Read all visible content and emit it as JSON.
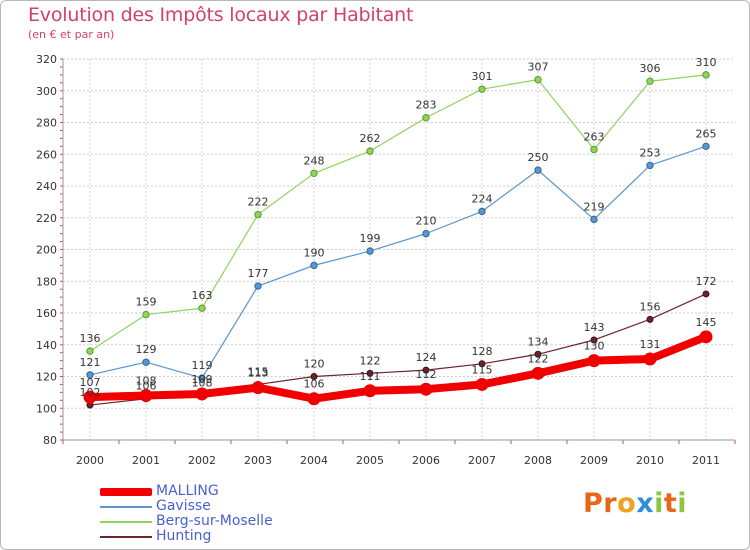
{
  "header": {
    "title": "Evolution des Impôts locaux par Habitant",
    "subtitle": "(en € et par an)"
  },
  "logo": {
    "text": "Proxiti",
    "letters": [
      {
        "char": "P",
        "color": "#e8651a"
      },
      {
        "char": "r",
        "color": "#e8651a"
      },
      {
        "char": "o",
        "color": "#f0a21c"
      },
      {
        "char": "x",
        "color": "#2d8fd8"
      },
      {
        "char": "i",
        "color": "#8cc63f"
      },
      {
        "char": "t",
        "color": "#e8651a"
      },
      {
        "char": "i",
        "color": "#8cc63f"
      }
    ]
  },
  "chart_data": {
    "type": "line",
    "title": "Evolution des Impôts locaux par Habitant",
    "subtitle": "(en € et par an)",
    "x": [
      "2000",
      "2001",
      "2002",
      "2003",
      "2004",
      "2005",
      "2006",
      "2007",
      "2008",
      "2009",
      "2010",
      "2011"
    ],
    "ylim": [
      80,
      320
    ],
    "yticks": [
      80,
      100,
      120,
      140,
      160,
      180,
      200,
      220,
      240,
      260,
      280,
      300,
      320
    ],
    "grid": true,
    "legend_position": "bottom-left",
    "series": [
      {
        "name": "Berg-sur-Moselle",
        "color": "#90d45a",
        "values": [
          136,
          159,
          163,
          222,
          248,
          262,
          283,
          301,
          307,
          263,
          306,
          310
        ]
      },
      {
        "name": "Gavisse",
        "color": "#5b96cc",
        "values": [
          121,
          129,
          119,
          177,
          190,
          199,
          210,
          224,
          250,
          219,
          253,
          265
        ]
      },
      {
        "name": "Hunting",
        "color": "#6e2428",
        "values": [
          102,
          106,
          108,
          115,
          120,
          122,
          124,
          128,
          134,
          143,
          156,
          172
        ]
      },
      {
        "name": "MALLING",
        "color": "#f00000",
        "values": [
          107,
          108,
          109,
          113,
          106,
          111,
          112,
          115,
          122,
          130,
          131,
          145
        ]
      }
    ],
    "legend": [
      "MALLING",
      "Gavisse",
      "Berg-sur-Moselle",
      "Hunting"
    ]
  }
}
